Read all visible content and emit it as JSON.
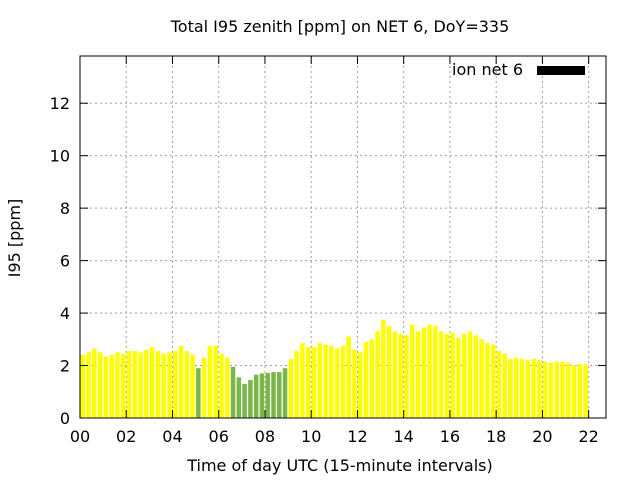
{
  "chart_data": {
    "type": "bar",
    "title": "Total I95 zenith [ppm] on NET 6, DoY=335",
    "xlabel": "Time of day UTC (15-minute intervals)",
    "ylabel": "I95 [ppm]",
    "xlim": [
      0,
      22.75
    ],
    "ylim": [
      0,
      13.8
    ],
    "xticks": [
      "00",
      "02",
      "04",
      "06",
      "08",
      "10",
      "12",
      "14",
      "16",
      "18",
      "20",
      "22"
    ],
    "yticks": [
      "0",
      "2",
      "4",
      "6",
      "8",
      "10",
      "12"
    ],
    "grid": true,
    "legend": {
      "position": "top-right",
      "label": "ion net 6",
      "color": "#000000"
    },
    "colors": {
      "normal": "#ffff00",
      "low": "#7ab648",
      "edge": "#111111"
    },
    "bin_hours": 0.25,
    "x_start": 0,
    "values": [
      2.4,
      2.5,
      2.65,
      2.5,
      2.35,
      2.4,
      2.5,
      2.45,
      2.55,
      2.55,
      2.5,
      2.6,
      2.7,
      2.55,
      2.45,
      2.5,
      2.55,
      2.75,
      2.55,
      2.4,
      1.9,
      2.3,
      2.75,
      2.75,
      2.45,
      2.3,
      1.95,
      1.55,
      1.3,
      1.45,
      1.65,
      1.7,
      1.72,
      1.75,
      1.75,
      1.9,
      2.25,
      2.55,
      2.85,
      2.7,
      2.7,
      2.85,
      2.8,
      2.75,
      2.65,
      2.75,
      3.1,
      2.6,
      2.5,
      2.9,
      3.0,
      3.3,
      3.75,
      3.5,
      3.3,
      3.2,
      3.15,
      3.55,
      3.3,
      3.45,
      3.55,
      3.5,
      3.3,
      3.2,
      3.25,
      3.05,
      3.2,
      3.3,
      3.15,
      3.0,
      2.85,
      2.8,
      2.55,
      2.45,
      2.25,
      2.3,
      2.25,
      2.2,
      2.25,
      2.2,
      2.15,
      2.1,
      2.15,
      2.15,
      2.1,
      2.0,
      2.05,
      2.05
    ]
  }
}
